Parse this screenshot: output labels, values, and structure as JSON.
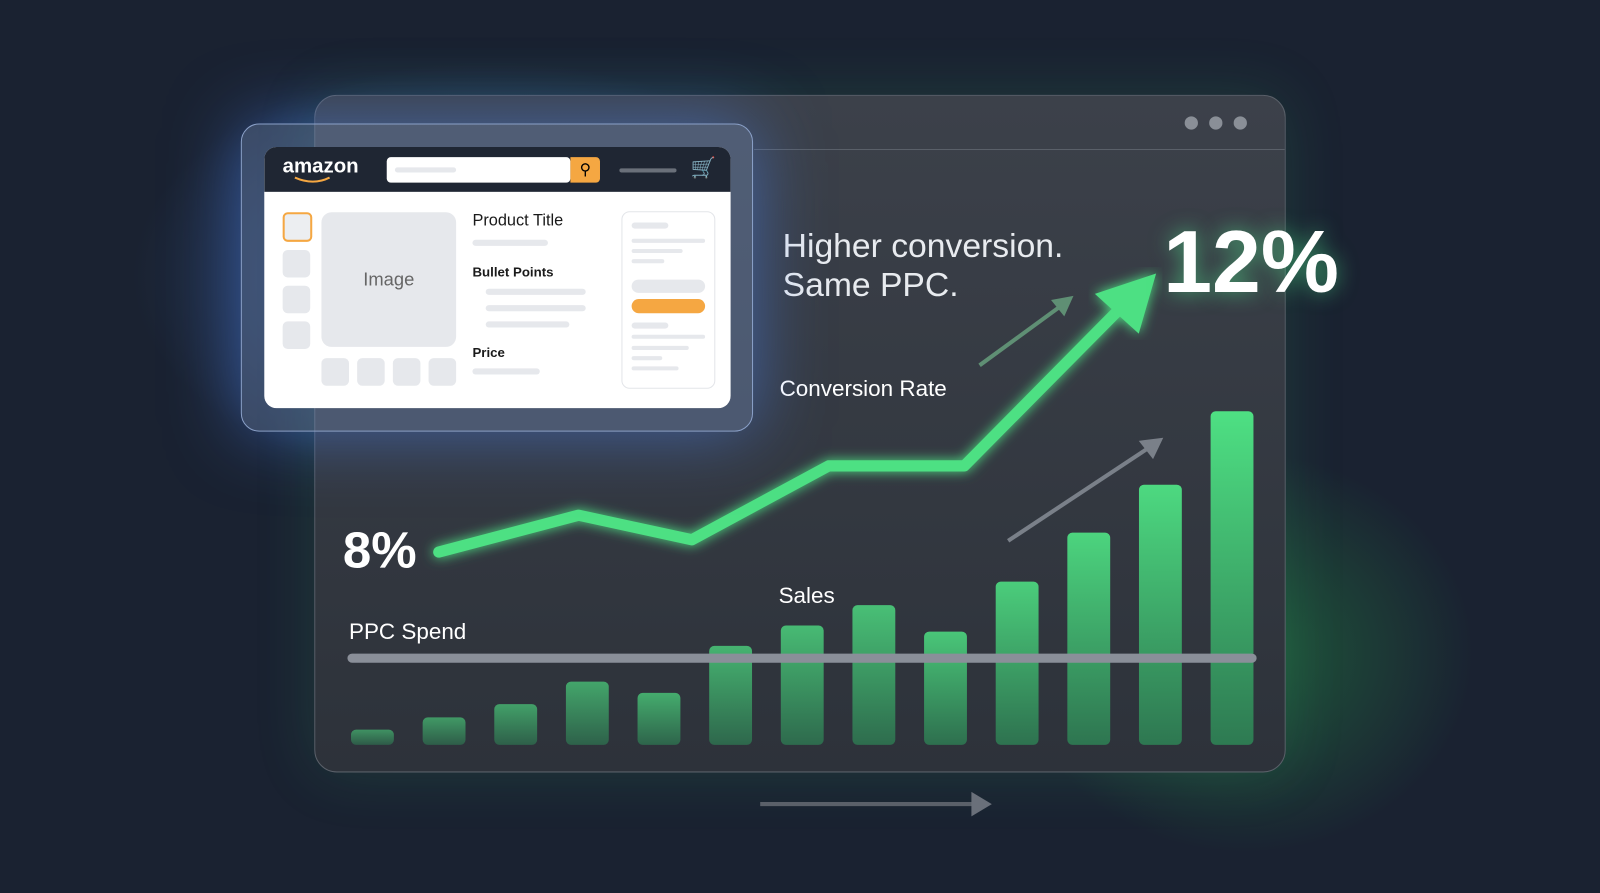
{
  "mockup": {
    "logo": "amazon",
    "product_title": "Product Title",
    "image_label": "Image",
    "bullet_points": "Bullet Points",
    "price": "Price",
    "accent": "#f5a742"
  },
  "headline": {
    "line1": "Higher conversion.",
    "line2": "Same PPC."
  },
  "start_value": "8%",
  "end_value": "12%",
  "labels": {
    "conversion_rate": "Conversion Rate",
    "sales": "Sales",
    "ppc_spend": "PPC Spend"
  },
  "colors": {
    "green": "#4ee083",
    "background": "#1a2231"
  },
  "chart_data": {
    "type": "bar",
    "series": [
      {
        "name": "Sales",
        "values": [
          15,
          27,
          40,
          62,
          51,
          97,
          117,
          137,
          111,
          160,
          208,
          255,
          327
        ]
      }
    ],
    "line": {
      "name": "Conversion Rate",
      "values": [
        8,
        8.6,
        8.2,
        9.4,
        9.4,
        12
      ]
    },
    "ppc_spend": "flat"
  }
}
